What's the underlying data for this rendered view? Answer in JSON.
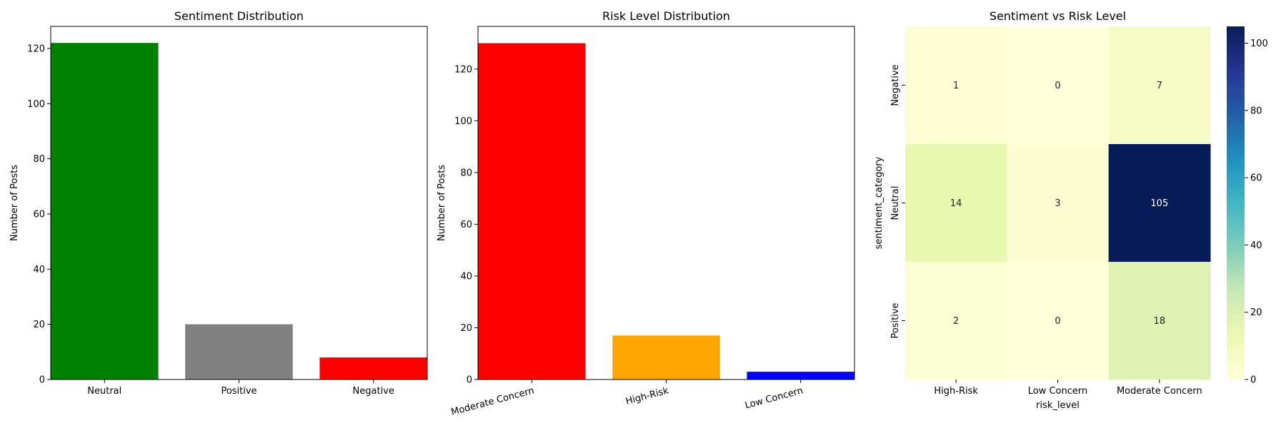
{
  "chart_data": [
    {
      "type": "bar",
      "title": "Sentiment Distribution",
      "xlabel": "",
      "ylabel": "Number of Posts",
      "categories": [
        "Neutral",
        "Positive",
        "Negative"
      ],
      "values": [
        122,
        20,
        8
      ],
      "colors": [
        "#008000",
        "#808080",
        "#ff0000"
      ],
      "ylim": [
        0,
        128
      ],
      "yticks": [
        0,
        20,
        40,
        60,
        80,
        100,
        120
      ],
      "grid": false
    },
    {
      "type": "bar",
      "title": "Risk Level Distribution",
      "xlabel": "",
      "ylabel": "Number of Posts",
      "categories": [
        "Moderate Concern",
        "High-Risk",
        "Low Concern"
      ],
      "values": [
        130,
        17,
        3
      ],
      "colors": [
        "#ff0000",
        "#ffa500",
        "#0000ff"
      ],
      "ylim": [
        0,
        136.5
      ],
      "yticks": [
        0,
        20,
        40,
        60,
        80,
        100,
        120
      ],
      "xtick_rotation": 15,
      "grid": false
    },
    {
      "type": "heatmap",
      "title": "Sentiment vs Risk Level",
      "xlabel": "risk_level",
      "ylabel": "sentiment_category",
      "x_categories": [
        "High-Risk",
        "Low Concern",
        "Moderate Concern"
      ],
      "y_categories": [
        "Negative",
        "Neutral",
        "Positive"
      ],
      "values": [
        [
          1,
          0,
          7
        ],
        [
          14,
          3,
          105
        ],
        [
          2,
          0,
          18
        ]
      ],
      "colormap": "YlGnBu",
      "vmin": 0,
      "vmax": 105,
      "colorbar_ticks": [
        0,
        20,
        40,
        60,
        80,
        100
      ],
      "annotated": true
    }
  ]
}
